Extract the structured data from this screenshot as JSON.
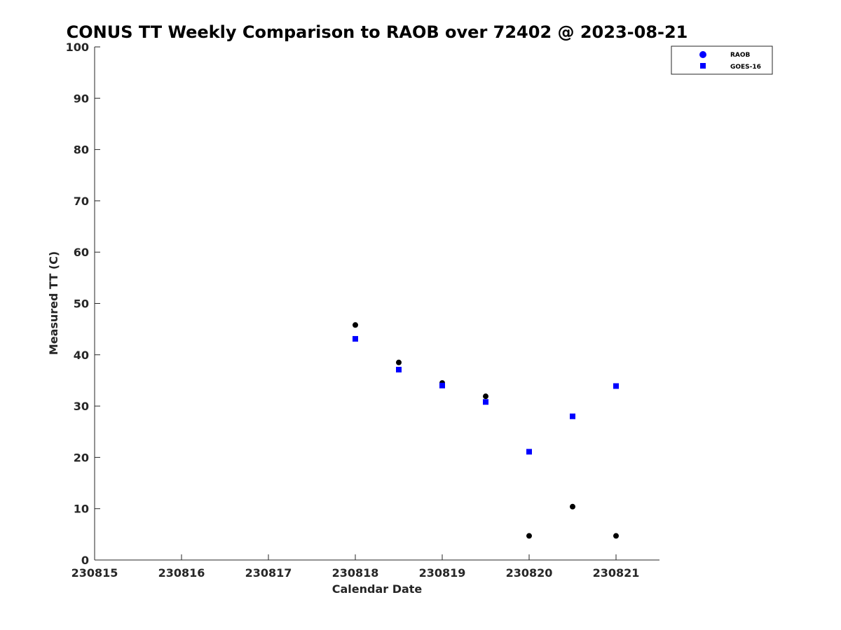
{
  "chart_data": {
    "type": "scatter",
    "title": "CONUS TT Weekly Comparison to RAOB over 72402 @ 2023-08-21",
    "xlabel": "Calendar Date",
    "ylabel": "Measured TT (C)",
    "xlim": [
      230815,
      230821.5
    ],
    "ylim": [
      0,
      100
    ],
    "x_ticks": [
      230815,
      230816,
      230817,
      230818,
      230819,
      230820,
      230821
    ],
    "x_tick_labels": [
      "230815",
      "230816",
      "230817",
      "230818",
      "230819",
      "230820",
      "230821"
    ],
    "y_ticks": [
      0,
      10,
      20,
      30,
      40,
      50,
      60,
      70,
      80,
      90,
      100
    ],
    "y_tick_labels": [
      "0",
      "10",
      "20",
      "30",
      "40",
      "50",
      "60",
      "70",
      "80",
      "90",
      "100"
    ],
    "grid": false,
    "legend_position": "top-right, outside plot",
    "series": [
      {
        "name": "RAOB",
        "marker": "circle",
        "color": "#000000",
        "legend_color": "#0000ff",
        "points": [
          {
            "x": 230818,
            "y": 45.8
          },
          {
            "x": 230818.5,
            "y": 38.5
          },
          {
            "x": 230819,
            "y": 34.5
          },
          {
            "x": 230819.5,
            "y": 31.9
          },
          {
            "x": 230820,
            "y": 4.7
          },
          {
            "x": 230820.5,
            "y": 10.4
          },
          {
            "x": 230821,
            "y": 4.7
          }
        ]
      },
      {
        "name": "GOES-16",
        "marker": "square",
        "color": "#0000ff",
        "legend_color": "#0000ff",
        "points": [
          {
            "x": 230818,
            "y": 43.1
          },
          {
            "x": 230818.5,
            "y": 37.1
          },
          {
            "x": 230819,
            "y": 34.0
          },
          {
            "x": 230819.5,
            "y": 30.8
          },
          {
            "x": 230820,
            "y": 21.1
          },
          {
            "x": 230820.5,
            "y": 28.0
          },
          {
            "x": 230821,
            "y": 33.9
          }
        ]
      }
    ]
  }
}
